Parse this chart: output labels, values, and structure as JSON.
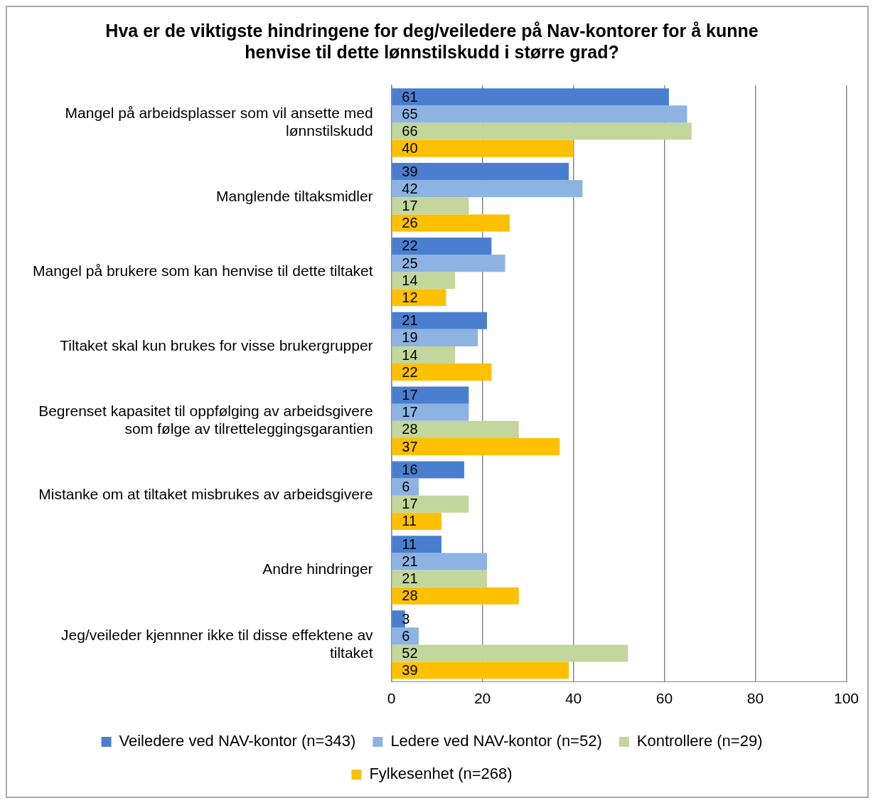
{
  "chart_data": {
    "type": "bar",
    "orientation": "horizontal",
    "title": "Hva er de viktigste hindringene for deg/veiledere på Nav-kontorer for å kunne henvise til dette lønnstilskudd i større grad?",
    "categories": [
      "Mangel på arbeidsplasser som vil ansette med lønnstilskudd",
      "Manglende tiltaksmidler",
      "Mangel på brukere som kan henvise til dette tiltaket",
      "Tiltaket skal kun brukes for visse brukergrupper",
      "Begrenset kapasitet til oppfølging av arbeidsgivere som følge av tilretteleggingsgarantien",
      "Mistanke om at tiltaket misbrukes av arbeidsgivere",
      "Andre hindringer",
      "Jeg/veileder kjennner ikke til disse effektene av tiltaket"
    ],
    "series": [
      {
        "name": "Veiledere ved NAV-kontor (n=343)",
        "color": "#4a7fd0",
        "values": [
          61,
          39,
          22,
          21,
          17,
          16,
          11,
          3
        ]
      },
      {
        "name": "Ledere ved NAV-kontor (n=52)",
        "color": "#8db3e2",
        "values": [
          65,
          42,
          25,
          19,
          17,
          6,
          21,
          6
        ]
      },
      {
        "name": "Kontrollere (n=29)",
        "color": "#c3d69b",
        "values": [
          66,
          17,
          14,
          14,
          28,
          17,
          21,
          52
        ]
      },
      {
        "name": "Fylkesenhet (n=268)",
        "color": "#ffc000",
        "values": [
          40,
          26,
          12,
          22,
          37,
          11,
          28,
          39
        ]
      }
    ],
    "xlim": [
      0,
      100
    ],
    "xticks": [
      0,
      20,
      40,
      60,
      80,
      100
    ],
    "grid": "x",
    "legend": "bottom",
    "data_labels": true
  }
}
